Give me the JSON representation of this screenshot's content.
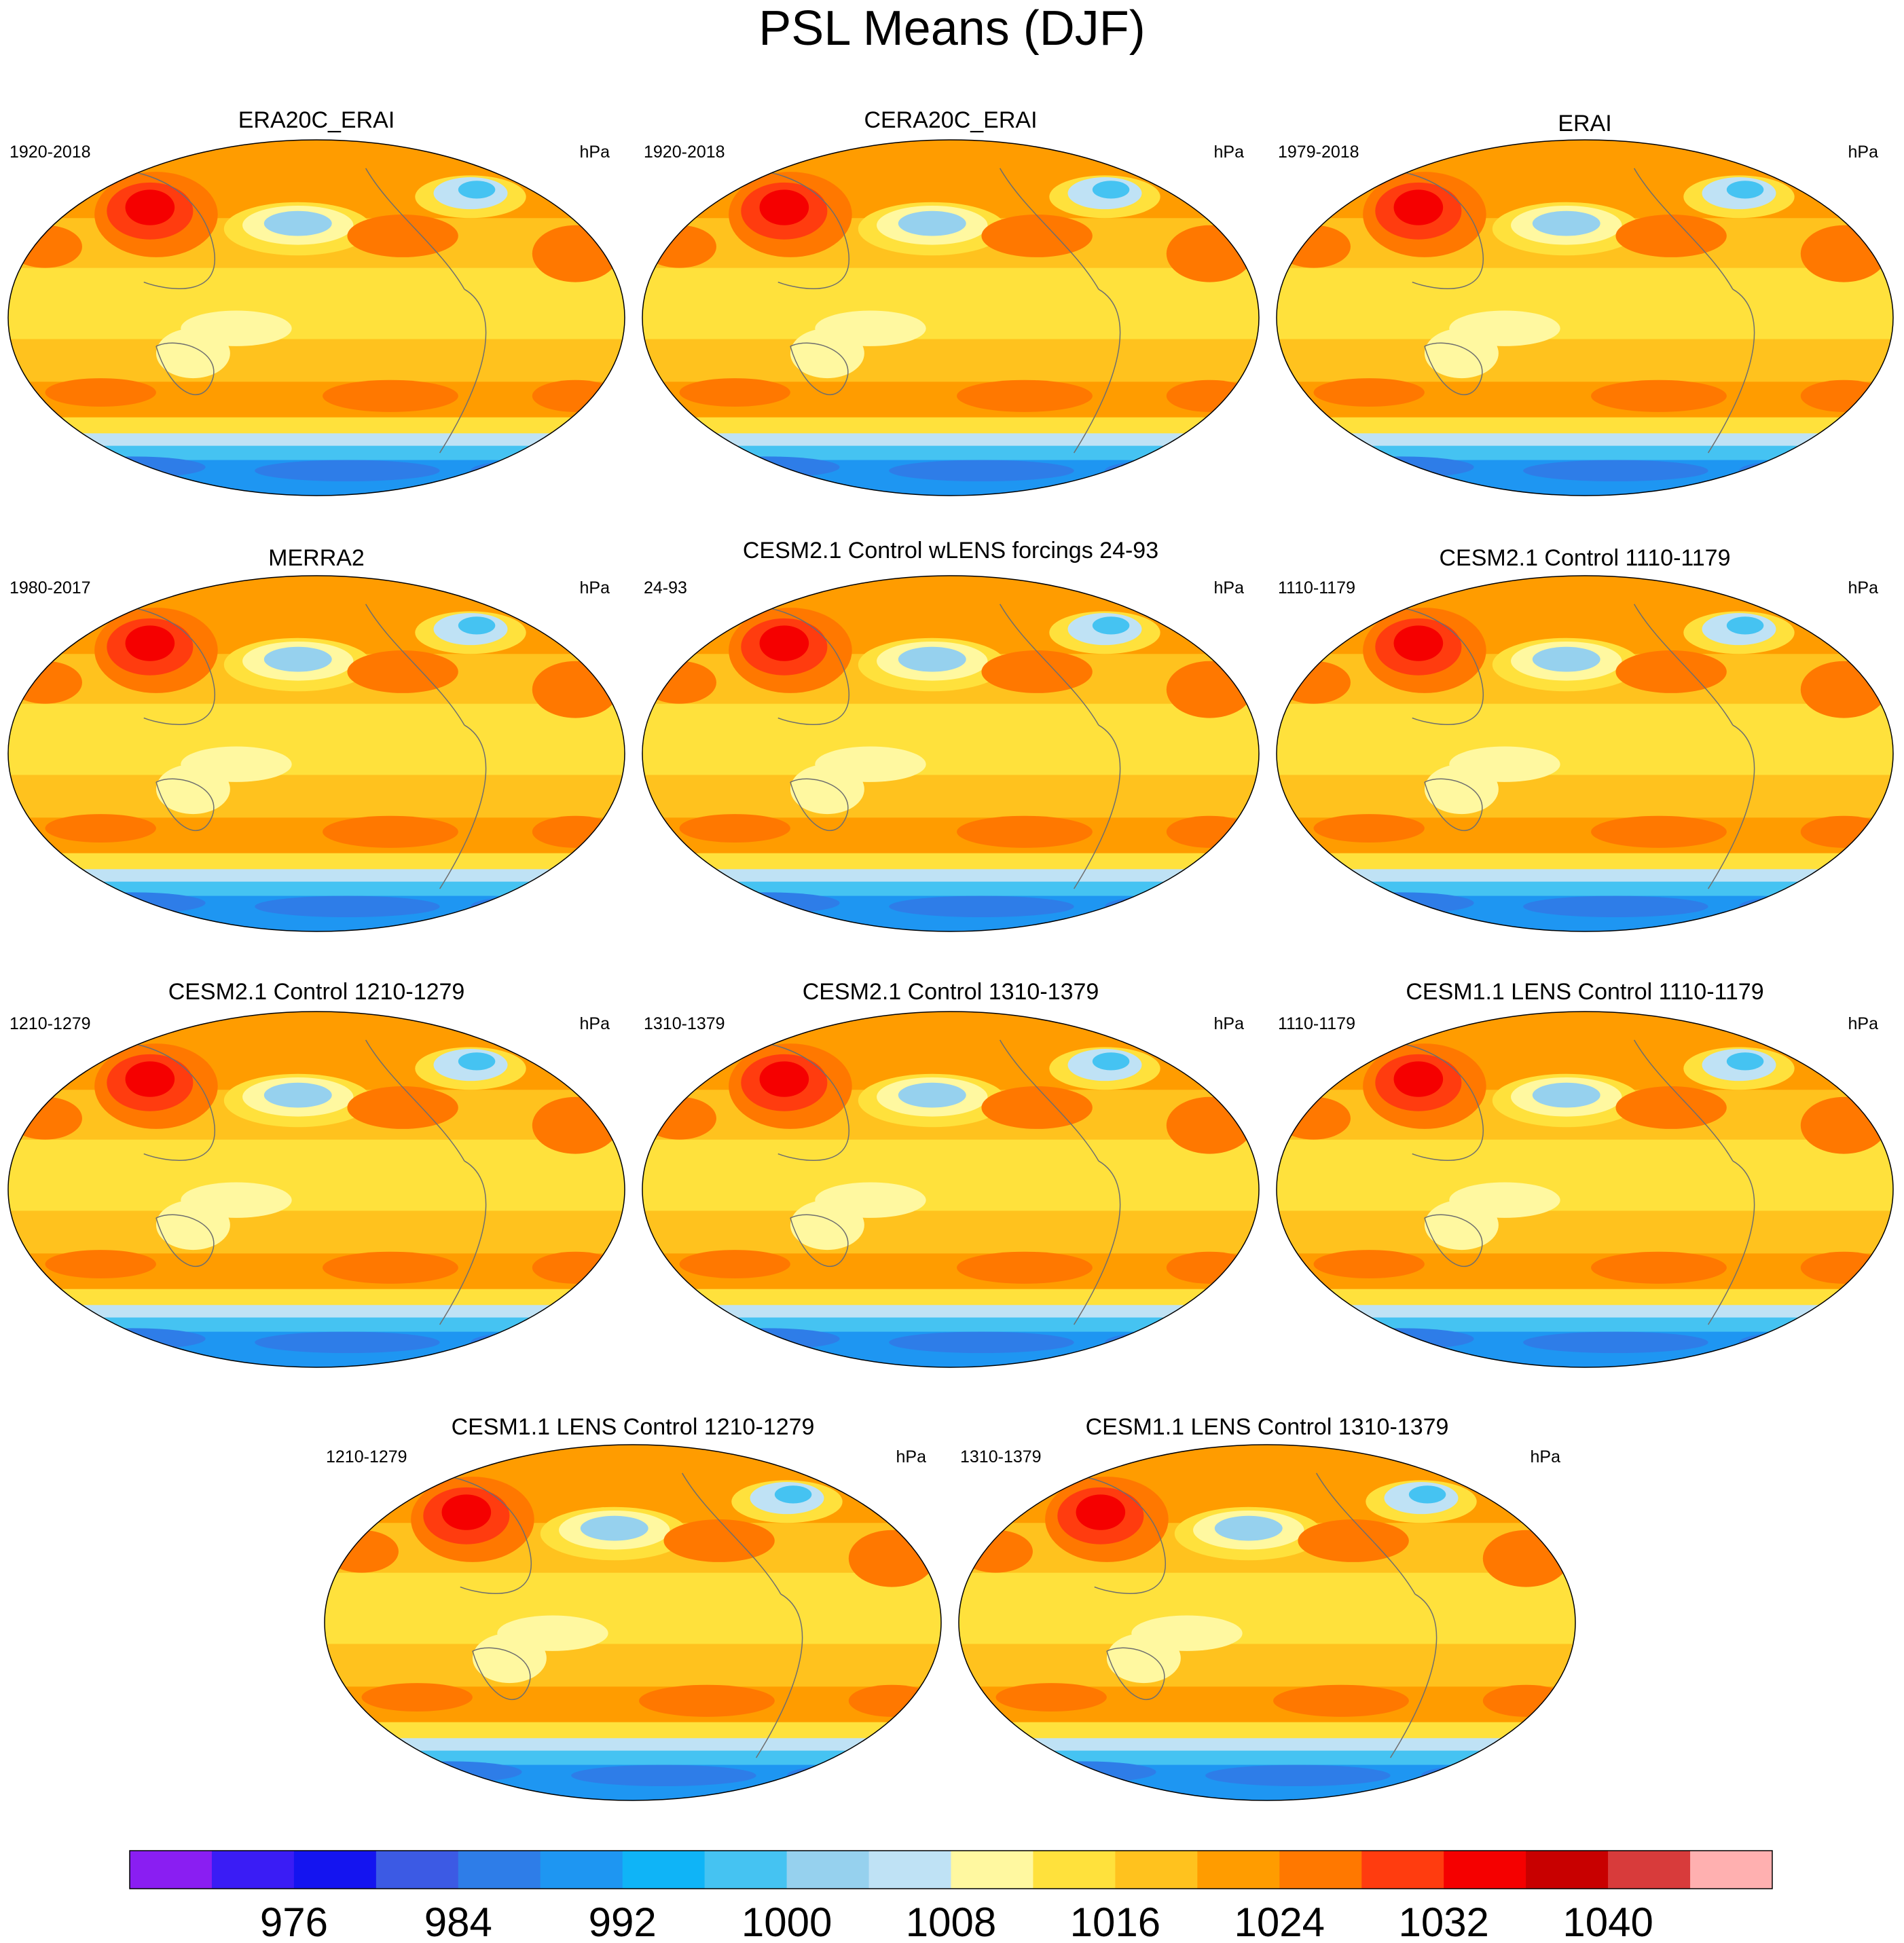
{
  "chart_data": {
    "type": "heatmap",
    "title": "PSL Means (DJF)",
    "units": "hPa",
    "projection": "Robinson, Pacific-centered global",
    "colorbar": {
      "tick_labels": [
        "976",
        "984",
        "992",
        "1000",
        "1008",
        "1016",
        "1024",
        "1032",
        "1040"
      ],
      "levels": [
        970,
        972,
        976,
        980,
        984,
        988,
        992,
        996,
        1000,
        1004,
        1008,
        1012,
        1016,
        1020,
        1024,
        1028,
        1032,
        1036,
        1040,
        1044
      ],
      "colors": [
        "#8a1ef2",
        "#3a1cf5",
        "#1414f0",
        "#3c5ae4",
        "#2e7de8",
        "#1e96f2",
        "#0fb4f7",
        "#45c3f2",
        "#96d1ee",
        "#bfe2f5",
        "#fff8a0",
        "#ffe13c",
        "#ffc21e",
        "#ff9c00",
        "#ff7800",
        "#ff3c0f",
        "#f50000",
        "#c80000",
        "#d83b3b",
        "#ffb0b0"
      ]
    },
    "panels": [
      {
        "name": "ERA20C_ERAI",
        "period": "1920-2018",
        "units": "hPa"
      },
      {
        "name": "CERA20C_ERAI",
        "period": "1920-2018",
        "units": "hPa"
      },
      {
        "name": "ERAI",
        "period": "1979-2018",
        "units": "hPa"
      },
      {
        "name": "MERRA2",
        "period": "1980-2017",
        "units": "hPa"
      },
      {
        "name": "CESM2.1 Control wLENS forcings 24-93",
        "period": "24-93",
        "units": "hPa"
      },
      {
        "name": "CESM2.1 Control 1110-1179",
        "period": "1110-1179",
        "units": "hPa"
      },
      {
        "name": "CESM2.1 Control 1210-1279",
        "period": "1210-1279",
        "units": "hPa"
      },
      {
        "name": "CESM2.1 Control 1310-1379",
        "period": "1310-1379",
        "units": "hPa"
      },
      {
        "name": "CESM1.1 LENS Control 1110-1179",
        "period": "1110-1179",
        "units": "hPa"
      },
      {
        "name": "CESM1.1 LENS Control 1210-1279",
        "period": "1210-1279",
        "units": "hPa"
      },
      {
        "name": "CESM1.1 LENS Control 1310-1379",
        "period": "1310-1379",
        "units": "hPa"
      }
    ]
  }
}
